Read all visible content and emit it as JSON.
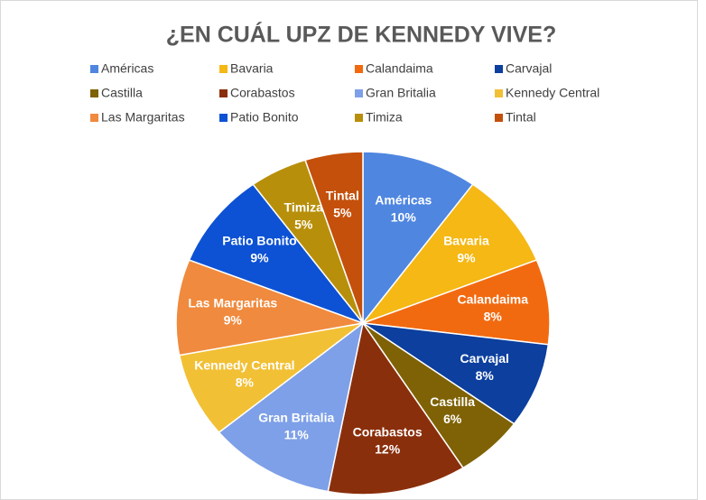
{
  "chart_data": {
    "type": "pie",
    "title": "¿EN CUÁL UPZ DE KENNEDY VIVE?",
    "categories": [
      "Américas",
      "Bavaria",
      "Calandaima",
      "Carvajal",
      "Castilla",
      "Corabastos",
      "Gran Britalia",
      "Kennedy Central",
      "Las Margaritas",
      "Patio Bonito",
      "Timiza",
      "Tintal"
    ],
    "values": [
      10,
      9,
      8,
      8,
      6,
      12,
      11,
      8,
      9,
      9,
      5,
      5
    ],
    "value_labels": [
      "10%",
      "9%",
      "8%",
      "8%",
      "6%",
      "12%",
      "11%",
      "8%",
      "9%",
      "9%",
      "5%",
      "5%"
    ],
    "colors": [
      "#4f86e0",
      "#f5b814",
      "#f26a10",
      "#0c3f9e",
      "#7f6205",
      "#8a2f0c",
      "#7ea0e8",
      "#f2c035",
      "#f08a3e",
      "#0d52d4",
      "#b88f0a",
      "#c4500c"
    ]
  }
}
